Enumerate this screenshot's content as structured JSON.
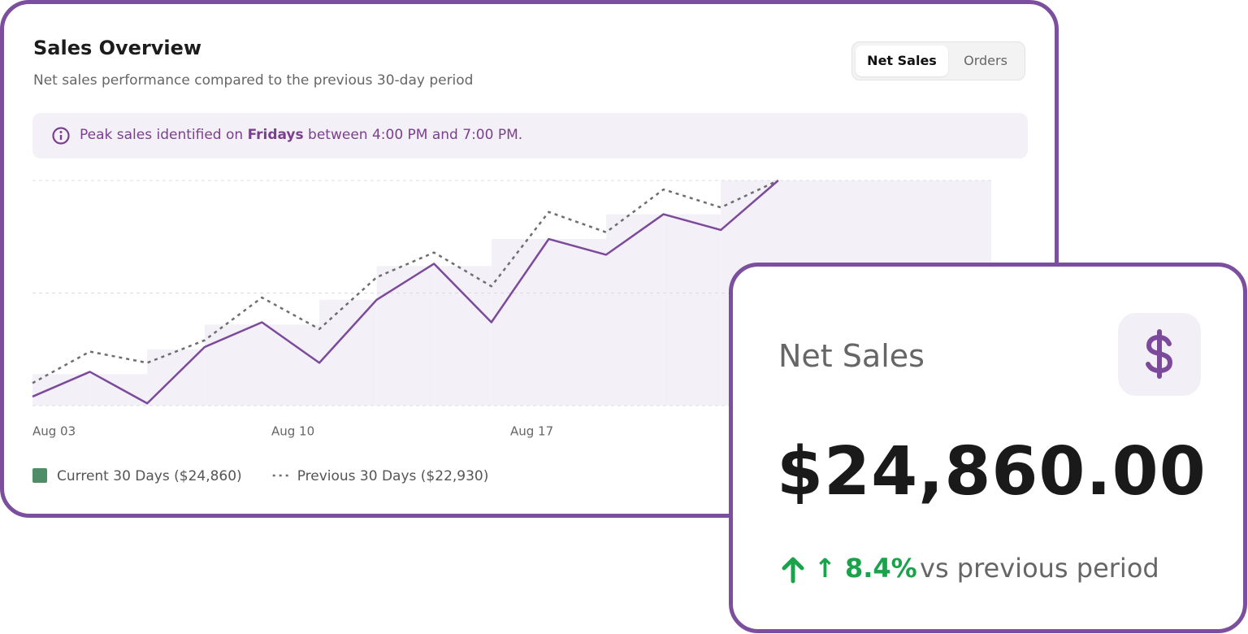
{
  "header": {
    "title": "Sales Overview",
    "subtitle": "Net sales performance compared to the previous 30-day period"
  },
  "tabs": [
    "Net Sales",
    "Orders"
  ],
  "alert": {
    "text_before": "Peak sales identified on",
    "bold": "Fridays",
    "text_after": "between 4:00 PM and 7:00 PM."
  },
  "chart_data": {
    "type": "line",
    "categories": [
      "Aug 03",
      null,
      null,
      null,
      null,
      null,
      null,
      null,
      null,
      null,
      null,
      null,
      null,
      null
    ],
    "xticks": [
      "Aug 03",
      "Aug 10",
      "Aug 17"
    ],
    "ylim": [
      0,
      100
    ],
    "grid": true,
    "gridlines": [
      0,
      50,
      100
    ],
    "band": {
      "color": "#f4f0f7",
      "values": [
        14,
        14,
        25,
        36,
        36,
        47,
        62,
        62,
        74,
        74,
        85,
        85,
        100,
        100
      ]
    },
    "series": [
      {
        "name": "Current 30 Days ($24,860)",
        "color": "#7b4a9b",
        "style": "solid",
        "values": [
          4,
          15,
          1,
          26,
          37,
          19,
          47,
          63,
          37,
          74,
          67,
          85,
          78,
          100
        ]
      },
      {
        "name": "Previous 30 Days ($22,930)",
        "color": "#6e6e6e",
        "style": "dotted",
        "values": [
          10,
          24,
          19,
          29,
          48,
          34,
          57,
          68,
          53,
          86,
          77,
          96,
          88,
          100
        ]
      }
    ]
  },
  "kpi": {
    "label": "Net Sales",
    "value": "$24,860.00",
    "change": "↑ 8.4%",
    "comparison": "vs previous period"
  }
}
